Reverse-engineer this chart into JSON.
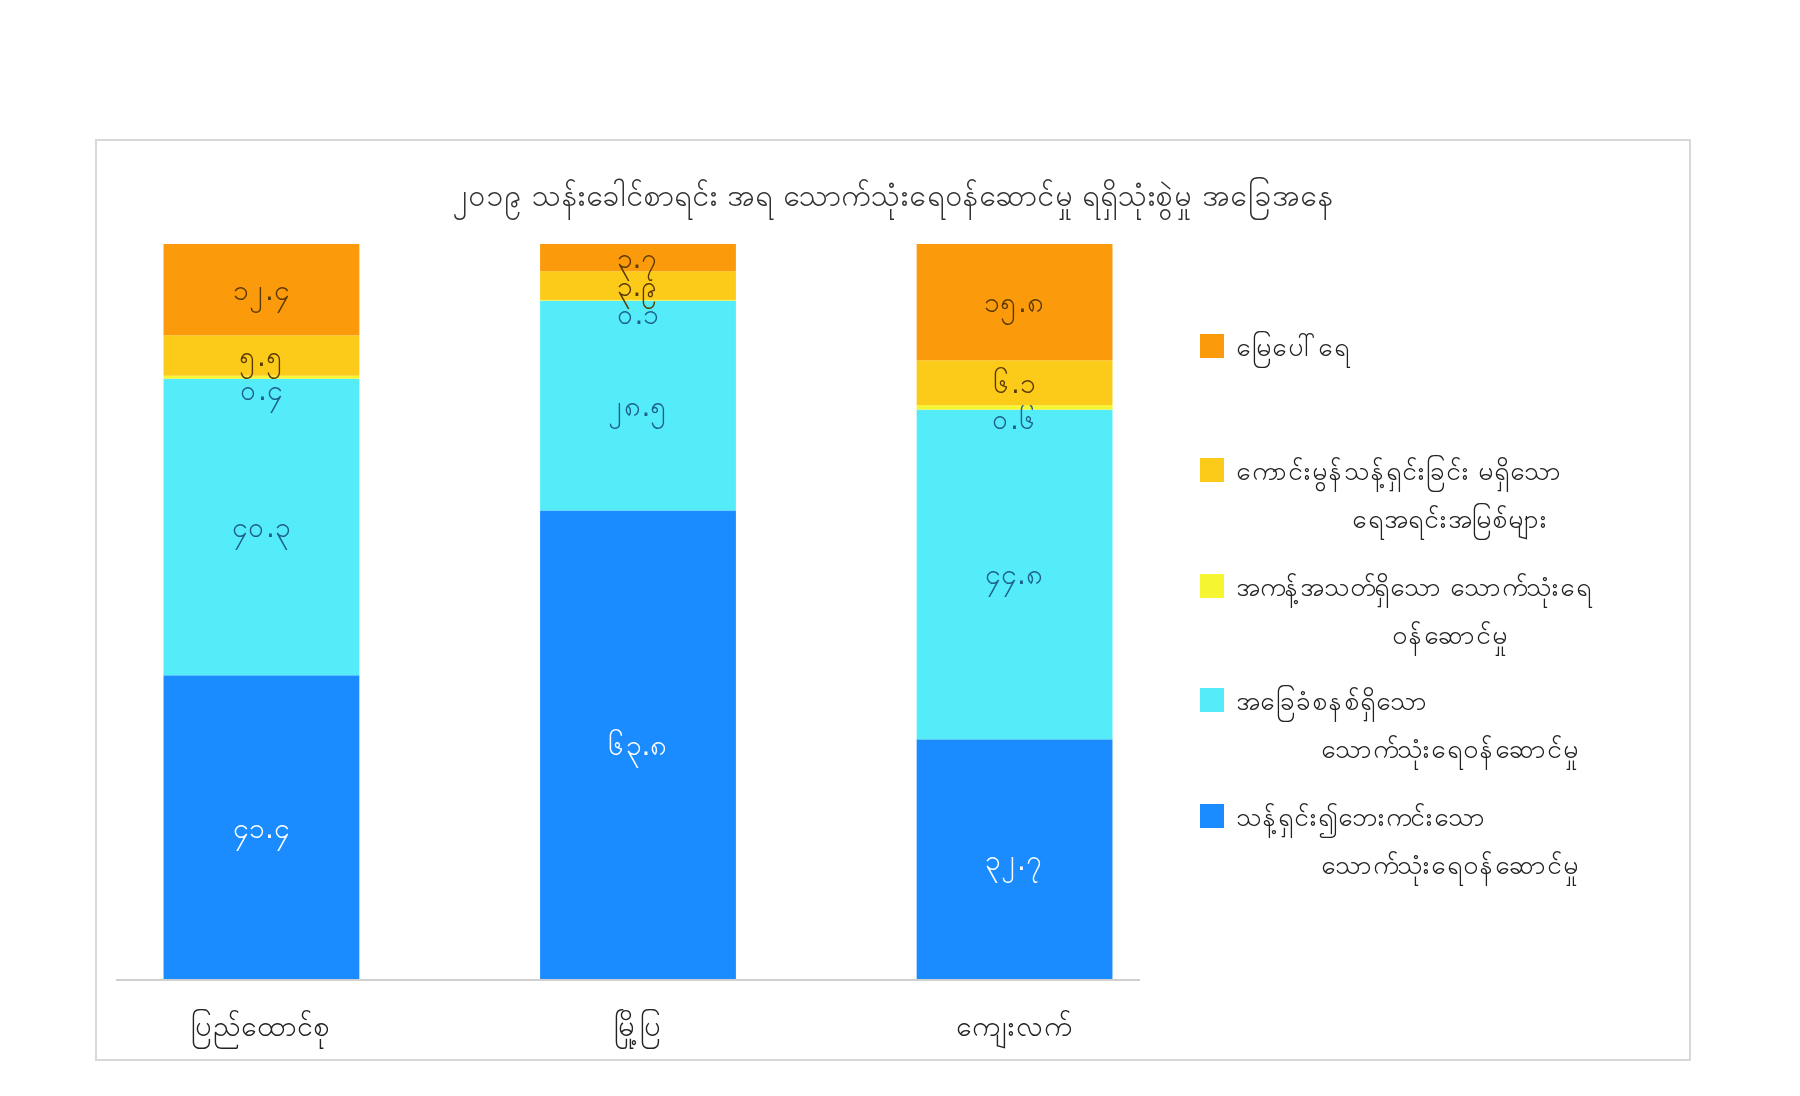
{
  "chart_data": {
    "type": "bar",
    "stacked": true,
    "title": "၂၀၁၉ သန်းခေါင်စာရင်း အရ သောက်သုံးရေဝန်ဆောင်မှု ရရှိသုံးစွဲမှု အခြေအနေ",
    "categories": [
      "ပြည်ထောင်စု",
      "မြို့ပြ",
      "ကျေးလက်"
    ],
    "legend": "right",
    "series": [
      {
        "name": "သန့်ရှင်း၍ဘေးကင်းသော သောက်သုံးရေဝန်ဆောင်မှု",
        "color": "#1a8cff",
        "values": [
          41.4,
          63.8,
          32.7
        ],
        "value_labels": [
          "၄၁.၄",
          "၆၃.၈",
          "၃၂.၇"
        ]
      },
      {
        "name": "အခြေခံစနစ်ရှိသော သောက်သုံးရေဝန်ဆောင်မှု",
        "color": "#55ecfa",
        "values": [
          40.3,
          28.5,
          44.8
        ],
        "value_labels": [
          "၄၀.၃",
          "၂၈.၅",
          "၄၄.၈"
        ]
      },
      {
        "name": "အကန့်အသတ်ရှိသော သောက်သုံးရေ ဝန်ဆောင်မှု",
        "color": "#f5f531",
        "values": [
          0.4,
          0.1,
          0.6
        ],
        "value_labels": [
          "၀.၄",
          "၀.၁",
          "၀.၆"
        ]
      },
      {
        "name": "ကောင်းမွန်သန့်ရှင်းခြင်း မရှိသော ရေအရင်းအမြစ်များ",
        "color": "#fccb1a",
        "values": [
          5.5,
          3.9,
          6.1
        ],
        "value_labels": [
          "၅.၅",
          "၃.၉",
          "၆.၁"
        ]
      },
      {
        "name": "မြေပေါ်ရေ",
        "color": "#fb9a0a",
        "values": [
          12.4,
          3.7,
          15.8
        ],
        "value_labels": [
          "၁၂.၄",
          "၃.၇",
          "၁၅.၈"
        ]
      }
    ]
  }
}
